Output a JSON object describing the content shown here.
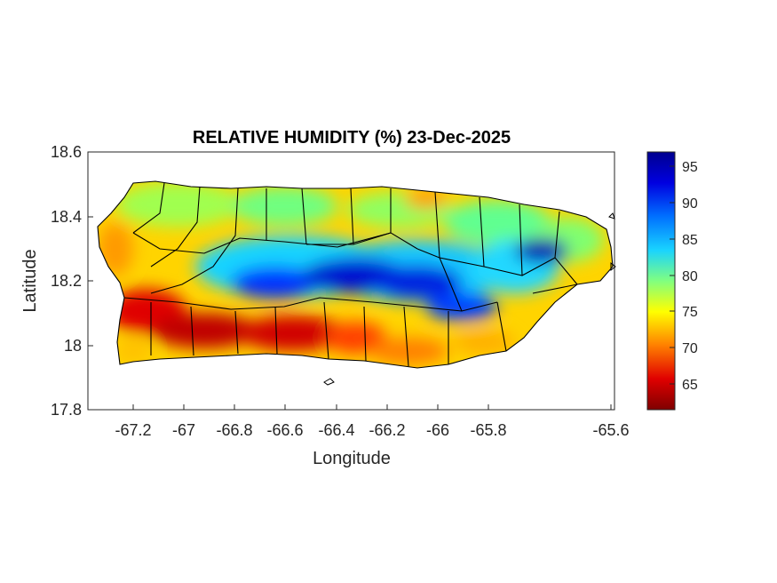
{
  "map": {
    "title": "RELATIVE HUMIDITY (%) 23-Dec-2025",
    "xlabel": "Longitude",
    "ylabel": "Latitude",
    "x_ticks": [
      "-67.2",
      "-67",
      "-66.8",
      "-66.6",
      "-66.4",
      "-66.2",
      "-66",
      "-65.8",
      "-65.6"
    ],
    "y_ticks": [
      "18.6",
      "18.4",
      "18.2",
      "18",
      "17.8"
    ],
    "colorbar_ticks": [
      "95",
      "90",
      "85",
      "80",
      "75",
      "70",
      "65"
    ],
    "colors": {
      "high": "#00008f",
      "mid": "#19d3ff",
      "neutral": "#ffff00",
      "low": "#7f0000",
      "boundary": "#000000"
    }
  }
}
